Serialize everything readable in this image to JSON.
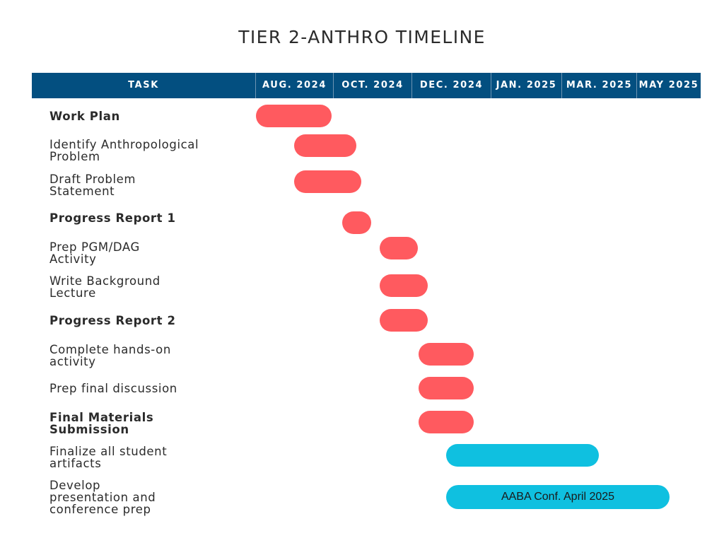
{
  "title": "TIER 2-ANTHRO TIMELINE",
  "header": {
    "task": "TASK",
    "months": [
      "AUG. 2024",
      "OCT. 2024",
      "DEC. 2024",
      "JAN. 2025",
      "MAR. 2025",
      "MAY 2025"
    ]
  },
  "colors": {
    "header_bg": "#034f80",
    "bar_phase_1": "#ff5a5f",
    "bar_phase_2": "#0fc0e0"
  },
  "tasks": [
    {
      "label": "Work Plan",
      "bold": true
    },
    {
      "label": "Identify Anthropological\nProblem",
      "bold": false
    },
    {
      "label": "Draft Problem\nStatement",
      "bold": false
    },
    {
      "label": "Progress Report 1",
      "bold": true
    },
    {
      "label": "Prep PGM/DAG\nActivity",
      "bold": false
    },
    {
      "label": "Write Background\nLecture",
      "bold": false
    },
    {
      "label": "Progress Report 2",
      "bold": true
    },
    {
      "label": "Complete hands-on\nactivity",
      "bold": false
    },
    {
      "label": "Prep final discussion",
      "bold": false
    },
    {
      "label": "Final Materials\nSubmission",
      "bold": true
    },
    {
      "label": "Finalize all student\nartifacts",
      "bold": false
    },
    {
      "label": "Develop\npresentation and\nconference prep",
      "bold": false
    }
  ],
  "bar_annotations": {
    "conference": "AABA Conf. April 2025"
  }
}
